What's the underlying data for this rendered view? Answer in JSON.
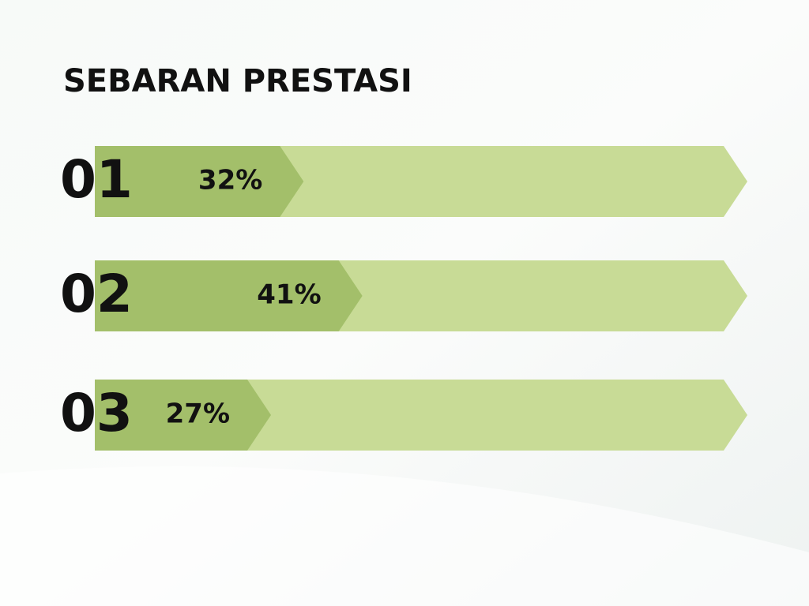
{
  "chart_data": {
    "type": "bar",
    "title": "SEBARAN PRESTASI",
    "categories": [
      "01",
      "02",
      "03"
    ],
    "values": [
      32,
      41,
      27
    ],
    "value_labels": [
      "32%",
      "41%",
      "27%"
    ],
    "xlim": [
      0,
      100
    ],
    "color": "#a3bf6a",
    "track_color": "#c8db96"
  }
}
